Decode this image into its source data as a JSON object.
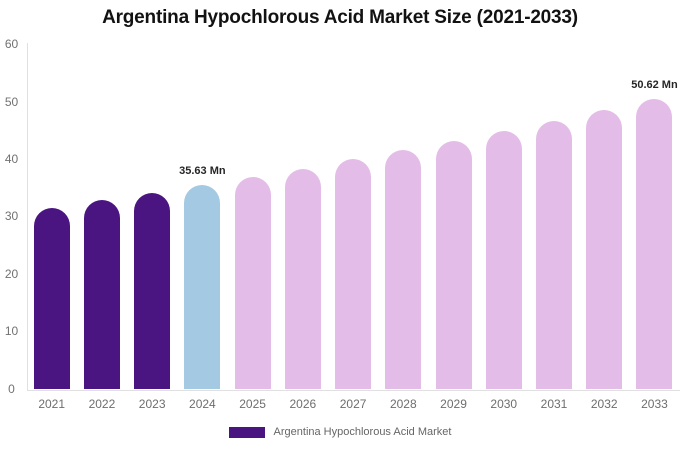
{
  "chart_data": {
    "type": "bar",
    "title": "Argentina Hypochlorous Acid Market Size (2021-2033)",
    "categories": [
      "2021",
      "2022",
      "2023",
      "2024",
      "2025",
      "2026",
      "2027",
      "2028",
      "2029",
      "2030",
      "2031",
      "2032",
      "2033"
    ],
    "values": [
      31.7,
      33.0,
      34.3,
      35.63,
      37.0,
      38.5,
      40.1,
      41.7,
      43.3,
      45.0,
      46.8,
      48.7,
      50.62
    ],
    "unit": "Mn",
    "xlabel": "",
    "ylabel": "",
    "ylim": [
      0,
      60
    ],
    "yticks": [
      0,
      10,
      20,
      30,
      40,
      50,
      60
    ],
    "grid": false,
    "legend_position": "bottom",
    "legend": [
      "Argentina Hypochlorous Acid Market"
    ],
    "annotations": [
      {
        "category": "2024",
        "text": "35.63 Mn"
      },
      {
        "category": "2033",
        "text": "50.62 Mn"
      }
    ],
    "bar_colors": [
      "#4B1581",
      "#4B1581",
      "#4B1581",
      "#A3CAE2",
      "#E4BCE8",
      "#E4BCE8",
      "#E4BCE8",
      "#E4BCE8",
      "#E4BCE8",
      "#E4BCE8",
      "#E4BCE8",
      "#E4BCE8",
      "#E4BCE8"
    ],
    "colors": {
      "historical": "#4B1581",
      "highlight": "#A3CAE2",
      "forecast": "#E4BCE8",
      "axis_line": "#e0e0e0",
      "axis_text": "#6e6e6e",
      "title_text": "#121212",
      "annotation_text": "#262626"
    }
  }
}
